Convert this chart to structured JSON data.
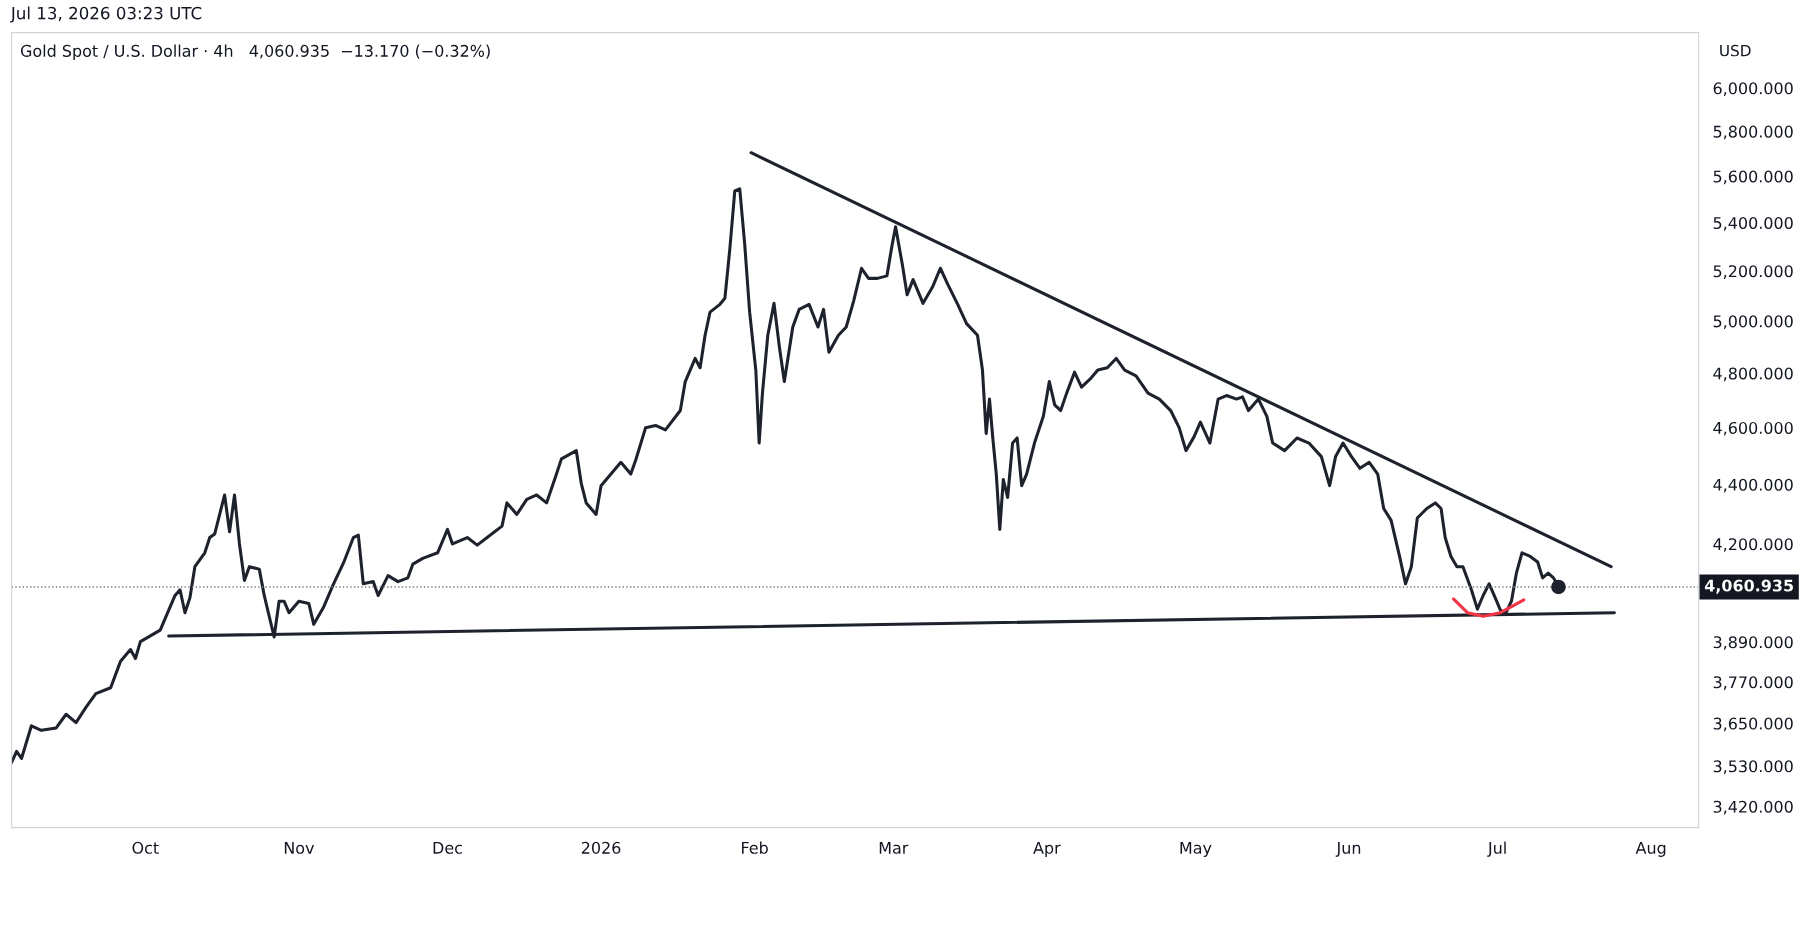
{
  "chart_data": {
    "type": "line",
    "title": "Gold Spot / U.S. Dollar · 4h",
    "subtitle": "4,060.935  −13.170 (−0.32%)",
    "ylabel": "USD",
    "annotations": [
      "Jul 13, 2026 03:23 UTC"
    ],
    "log": "y",
    "grid": false,
    "legend": false,
    "marker": "none",
    "line_style": "solid",
    "xlim": [
      "2025-09-04",
      "2026-08-10T14:00"
    ],
    "xticks": [
      {
        "value": "2025-10-01",
        "label": "Oct"
      },
      {
        "value": "2025-11-01",
        "label": "Nov"
      },
      {
        "value": "2025-12-01",
        "label": "Dec"
      },
      {
        "value": "2026-01-01",
        "label": "2026"
      },
      {
        "value": "2026-02-01",
        "label": "Feb"
      },
      {
        "value": "2026-03-01",
        "label": "Mar"
      },
      {
        "value": "2026-04-01",
        "label": "Apr"
      },
      {
        "value": "2026-05-01",
        "label": "May"
      },
      {
        "value": "2026-06-01",
        "label": "Jun"
      },
      {
        "value": "2026-07-01",
        "label": "Jul"
      },
      {
        "value": "2026-08-01",
        "label": "Aug"
      }
    ],
    "ylim": [
      3364,
      6266
    ],
    "yticks": [
      {
        "value": 3420,
        "label": "3,420.000"
      },
      {
        "value": 3530,
        "label": "3,530.000"
      },
      {
        "value": 3650,
        "label": "3,650.000"
      },
      {
        "value": 3770,
        "label": "3,770.000"
      },
      {
        "value": 3890,
        "label": "3,890.000"
      },
      {
        "value": 4200,
        "label": "4,200.000"
      },
      {
        "value": 4400,
        "label": "4,400.000"
      },
      {
        "value": 4600,
        "label": "4,600.000"
      },
      {
        "value": 4800,
        "label": "4,800.000"
      },
      {
        "value": 5000,
        "label": "5,000.000"
      },
      {
        "value": 5200,
        "label": "5,200.000"
      },
      {
        "value": 5400,
        "label": "5,400.000"
      },
      {
        "value": 5600,
        "label": "5,600.000"
      },
      {
        "value": 5800,
        "label": "5,800.000"
      },
      {
        "value": 6000,
        "label": "6,000.000"
      }
    ],
    "ref_lines": [
      {
        "axis": "y",
        "value": 4060.935,
        "label": "4,060.935",
        "color": "#787b86",
        "line_style": "dotted"
      }
    ],
    "series": [
      {
        "color": "#1e222d",
        "x": [
          "2025-09-04",
          "2025-09-05",
          "2025-09-06",
          "2025-09-08",
          "2025-09-10",
          "2025-09-13",
          "2025-09-15",
          "2025-09-17",
          "2025-09-19",
          "2025-09-21",
          "2025-09-24",
          "2025-09-26",
          "2025-09-28",
          "2025-09-29",
          "2025-09-30",
          "2025-10-04",
          "2025-10-06",
          "2025-10-07",
          "2025-10-08",
          "2025-10-09",
          "2025-10-10",
          "2025-10-11",
          "2025-10-13",
          "2025-10-14",
          "2025-10-15",
          "2025-10-17",
          "2025-10-18",
          "2025-10-19",
          "2025-10-20",
          "2025-10-21",
          "2025-10-22",
          "2025-10-24",
          "2025-10-25",
          "2025-10-27",
          "2025-10-28",
          "2025-10-29",
          "2025-10-30",
          "2025-11-01",
          "2025-11-03",
          "2025-11-04",
          "2025-11-06",
          "2025-11-08",
          "2025-11-10",
          "2025-11-12",
          "2025-11-13",
          "2025-11-14",
          "2025-11-16",
          "2025-11-17",
          "2025-11-19",
          "2025-11-21",
          "2025-11-23",
          "2025-11-24",
          "2025-11-26",
          "2025-11-29",
          "2025-12-01",
          "2025-12-02",
          "2025-12-05",
          "2025-12-07",
          "2025-12-09",
          "2025-12-12",
          "2025-12-13",
          "2025-12-15",
          "2025-12-17",
          "2025-12-19",
          "2025-12-21",
          "2025-12-23",
          "2025-12-24",
          "2025-12-27",
          "2025-12-28",
          "2025-12-29",
          "2025-12-31",
          "2026-01-01",
          "2026-01-03",
          "2026-01-05",
          "2026-01-07",
          "2026-01-08",
          "2026-01-10",
          "2026-01-12",
          "2026-01-14",
          "2026-01-17",
          "2026-01-18",
          "2026-01-20",
          "2026-01-21",
          "2026-01-22",
          "2026-01-23",
          "2026-01-25",
          "2026-01-26",
          "2026-01-27",
          "2026-01-28",
          "2026-01-29",
          "2026-01-30",
          "2026-01-31",
          "2026-02-01T06:00",
          "2026-02-01T22:00",
          "2026-02-02T14:00",
          "2026-02-03T16:00",
          "2026-02-04T22:00",
          "2026-02-06",
          "2026-02-07",
          "2026-02-08T17:00",
          "2026-02-10",
          "2026-02-12",
          "2026-02-13T19:00",
          "2026-02-14T22:00",
          "2026-02-16",
          "2026-02-17T22:00",
          "2026-02-19T12:00",
          "2026-02-21",
          "2026-02-22T14:00",
          "2026-02-24",
          "2026-02-25T19:00",
          "2026-02-27T17:00",
          "2026-02-28T18:00",
          "2026-03-01T11:00",
          "2026-03-02T20:00",
          "2026-03-03T19:00",
          "2026-03-05",
          "2026-03-07",
          "2026-03-08T22:00",
          "2026-03-10T12:00",
          "2026-03-12",
          "2026-03-14",
          "2026-03-15T19:00",
          "2026-03-18",
          "2026-03-19",
          "2026-03-19T18:00",
          "2026-03-20T10:00",
          "2026-03-21T02:00",
          "2026-03-21T19:00",
          "2026-03-22T12:00",
          "2026-03-23T05:00",
          "2026-03-24T02:00",
          "2026-03-25T02:00",
          "2026-03-26",
          "2026-03-26T22:00",
          "2026-03-27T22:00",
          "2026-03-29T12:00",
          "2026-03-31T07:00",
          "2026-04-01T12:00",
          "2026-04-02T14:00",
          "2026-04-03T19:00",
          "2026-04-05",
          "2026-04-06T14:00",
          "2026-04-08",
          "2026-04-09T17:00",
          "2026-04-11T07:00",
          "2026-04-13T05:00",
          "2026-04-15",
          "2026-04-16T17:00",
          "2026-04-19",
          "2026-04-21T10:00",
          "2026-04-23T17:00",
          "2026-04-26",
          "2026-04-27T17:00",
          "2026-04-29T02:00",
          "2026-04-30T17:00",
          "2026-05-02",
          "2026-05-03T22:00",
          "2026-05-05T14:00",
          "2026-05-07T07:00",
          "2026-05-09T07:00",
          "2026-05-10T12:00",
          "2026-05-11T17:00",
          "2026-05-13T17:00",
          "2026-05-15T10:00",
          "2026-05-16T14:00",
          "2026-05-19",
          "2026-05-21T12:00",
          "2026-05-23T22:00",
          "2026-05-26T10:00",
          "2026-05-28T02:00",
          "2026-05-29T07:00",
          "2026-05-30T19:00",
          "2026-06-01T12:00",
          "2026-06-03T05:00",
          "2026-06-05T02:00",
          "2026-06-06T19:00",
          "2026-06-08",
          "2026-06-09T12:00",
          "2026-06-11T05:00",
          "2026-06-12T10:00",
          "2026-06-13T14:00",
          "2026-06-14T19:00",
          "2026-06-16T17:00",
          "2026-06-18T10:00",
          "2026-06-19T14:00",
          "2026-06-20T10:00",
          "2026-06-21T14:00",
          "2026-06-22T19:00",
          "2026-06-24",
          "2026-06-25T17:00",
          "2026-06-26T22:00",
          "2026-06-28T02:00",
          "2026-06-29T07:00",
          "2026-06-30T12:00",
          "2026-07-01T14:00",
          "2026-07-02T17:00",
          "2026-07-03T19:00",
          "2026-07-04T19:00",
          "2026-07-05T22:00",
          "2026-07-07T14:00",
          "2026-07-09T02:00",
          "2026-07-10T02:00",
          "2026-07-11T05:00",
          "2026-07-12T07:00",
          "2026-07-13T07:00"
        ],
        "values": [
          3540,
          3571,
          3551,
          3643,
          3630,
          3637,
          3676,
          3652,
          3696,
          3736,
          3753,
          3832,
          3867,
          3840,
          3891,
          3926,
          3998,
          4034,
          4052,
          3980,
          4027,
          4126,
          4171,
          4221,
          4233,
          4364,
          4240,
          4364,
          4200,
          4082,
          4126,
          4118,
          4034,
          3905,
          4016,
          4016,
          3980,
          4016,
          4009,
          3944,
          3998,
          4071,
          4138,
          4221,
          4229,
          4071,
          4078,
          4034,
          4097,
          4078,
          4090,
          4134,
          4153,
          4171,
          4248,
          4200,
          4221,
          4196,
          4221,
          4259,
          4337,
          4298,
          4349,
          4364,
          4337,
          4436,
          4489,
          4518,
          4404,
          4337,
          4298,
          4396,
          4436,
          4477,
          4436,
          4485,
          4600,
          4608,
          4592,
          4662,
          4769,
          4856,
          4821,
          4945,
          5035,
          5066,
          5090,
          5291,
          5536,
          5545,
          5310,
          5035,
          4810,
          4545,
          4726,
          4945,
          5070,
          4900,
          4769,
          4977,
          5046,
          5066,
          4977,
          5046,
          4880,
          4945,
          4977,
          5080,
          5211,
          5170,
          5170,
          5180,
          5306,
          5383,
          5225,
          5104,
          5165,
          5070,
          5135,
          5211,
          5146,
          5066,
          4990,
          4945,
          4812,
          4579,
          4704,
          4563,
          4436,
          4248,
          4417,
          4356,
          4545,
          4563,
          4396,
          4436,
          4545,
          4641,
          4769,
          4683,
          4662,
          4726,
          4804,
          4748,
          4778,
          4812,
          4821,
          4856,
          4812,
          4790,
          4726,
          4704,
          4662,
          4600,
          4518,
          4567,
          4620,
          4545,
          4704,
          4717,
          4704,
          4712,
          4662,
          4704,
          4641,
          4545,
          4518,
          4563,
          4545,
          4497,
          4396,
          4497,
          4545,
          4497,
          4456,
          4477,
          4436,
          4318,
          4278,
          4159,
          4071,
          4126,
          4286,
          4318,
          4337,
          4318,
          4221,
          4159,
          4126,
          4126,
          4052,
          3991,
          4034,
          4071,
          4027,
          3987,
          3980,
          4016,
          4105,
          4171,
          4159,
          4141,
          4090,
          4105,
          4090,
          4060.935
        ]
      },
      {
        "color": "#1e222d",
        "x": [
          "2026-01-31T07:00",
          "2026-07-23T22:00"
        ],
        "values": [
          5704,
          4126
        ]
      },
      {
        "color": "#1e222d",
        "x": [
          "2025-10-05T17:00",
          "2026-07-24T14:00"
        ],
        "values": [
          3908,
          3980
        ]
      },
      {
        "color": "#f23645",
        "x": [
          "2026-06-22T02:00",
          "2026-06-24T22:00",
          "2026-06-28T02:00",
          "2026-07-01T14:00",
          "2026-07-06T07:00"
        ],
        "values": [
          4023,
          3980,
          3969,
          3980,
          4020
        ]
      },
      {
        "type": "scatter",
        "marker": "circle",
        "color": "#1e222d",
        "x": [
          "2026-07-13T07:00"
        ],
        "values": [
          4060.935
        ]
      }
    ]
  }
}
